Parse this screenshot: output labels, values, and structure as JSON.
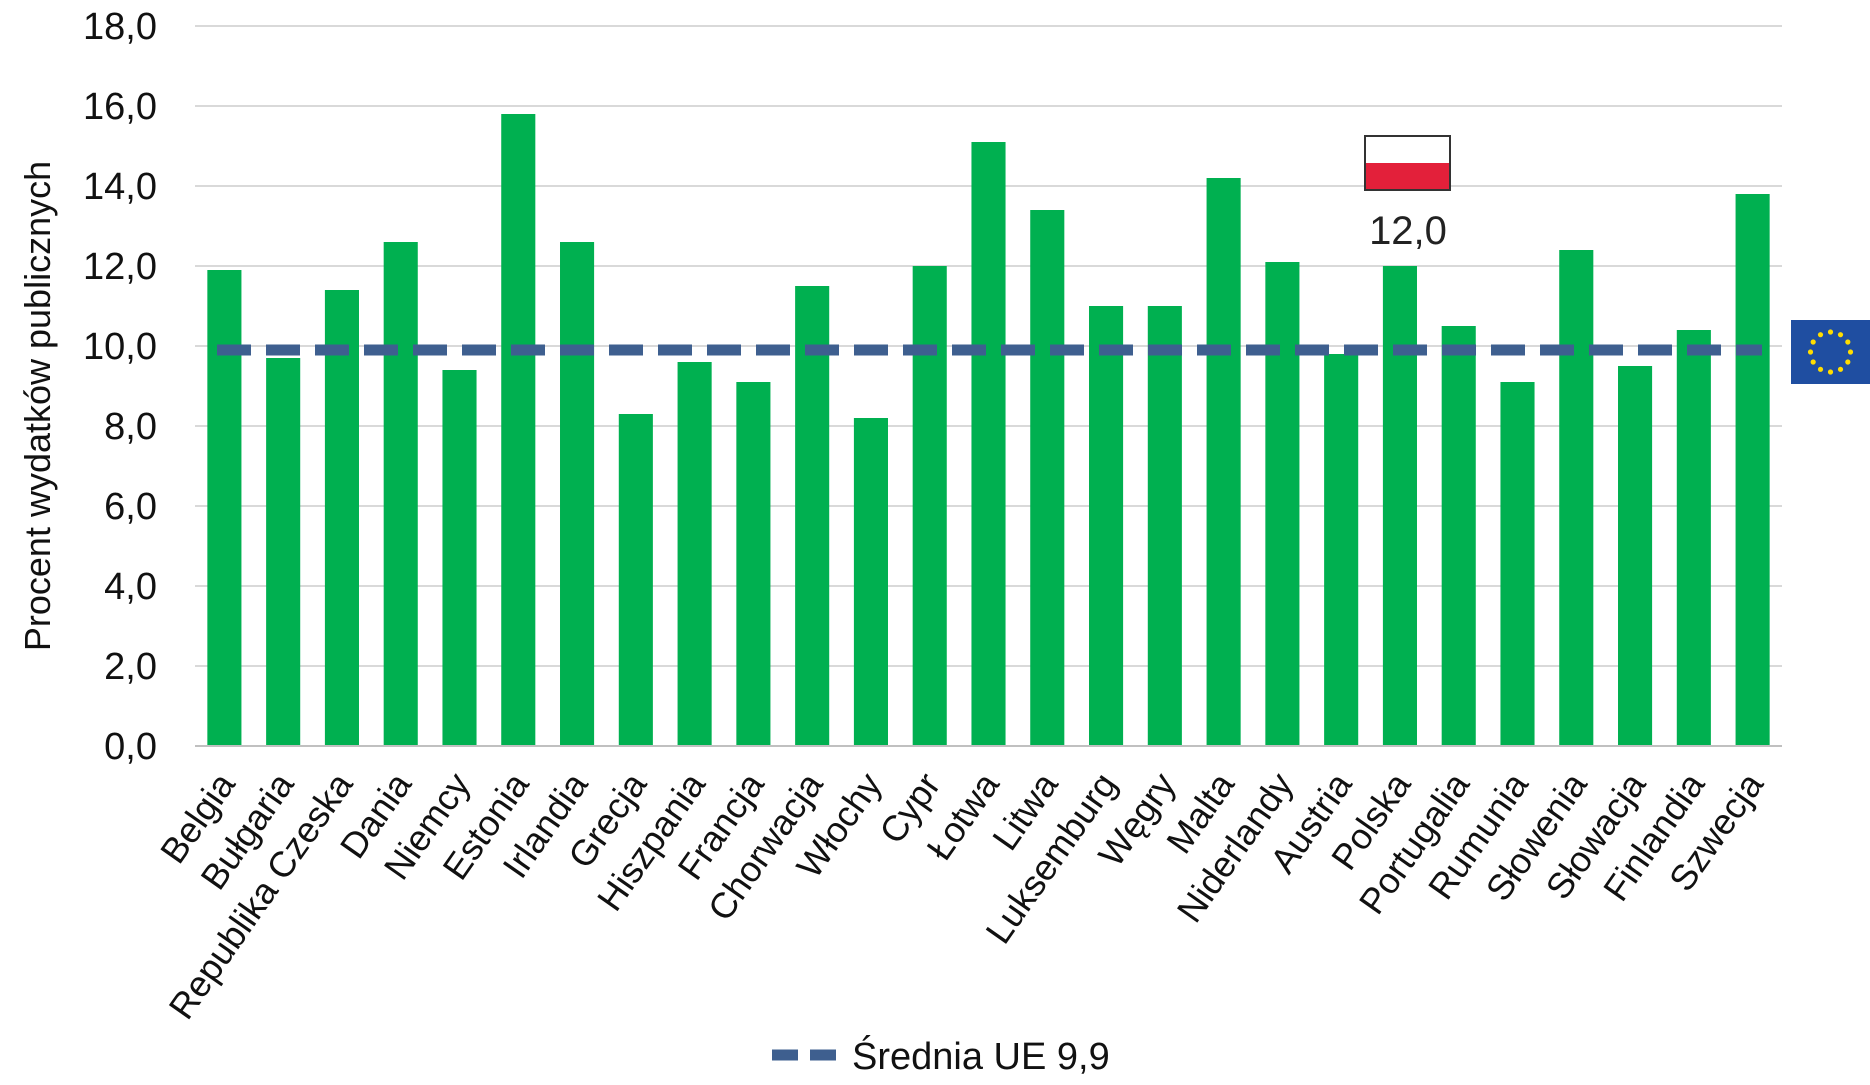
{
  "chart_data": {
    "type": "bar",
    "ylabel": "Procent wydatków publicznych",
    "xlabel": "",
    "ylim": [
      0,
      18
    ],
    "yticks": [
      "0,0",
      "2,0",
      "4,0",
      "6,0",
      "8,0",
      "10,0",
      "12,0",
      "14,0",
      "16,0",
      "18,0"
    ],
    "grid": true,
    "categories": [
      "Belgia",
      "Bułgaria",
      "Republika Czeska",
      "Dania",
      "Niemcy",
      "Estonia",
      "Irlandia",
      "Grecja",
      "Hiszpania",
      "Francja",
      "Chorwacja",
      "Włochy",
      "Cypr",
      "Łotwa",
      "Litwa",
      "Luksemburg",
      "Węgry",
      "Malta",
      "Niderlandy",
      "Austria",
      "Polska",
      "Portugalia",
      "Rumunia",
      "Słowenia",
      "Słowacja",
      "Finlandia",
      "Szwecja"
    ],
    "series": [
      {
        "values": [
          11.9,
          9.7,
          11.4,
          12.6,
          9.4,
          15.8,
          12.6,
          8.3,
          9.6,
          9.1,
          11.5,
          8.2,
          12.0,
          15.1,
          13.4,
          11.0,
          11.0,
          14.2,
          12.1,
          9.8,
          12.0,
          10.5,
          9.1,
          12.4,
          9.5,
          10.4,
          13.8
        ],
        "color": "#00b050"
      }
    ],
    "reference_line": {
      "label": "Średnia UE 9,9",
      "value": 9.9,
      "color": "#3e5f8f",
      "style": "dashed"
    },
    "legend_placement": "bottom",
    "annotations": [
      {
        "category": "Polska",
        "text": "12,0",
        "icon": "poland-flag-icon"
      },
      {
        "text": "",
        "icon": "eu-flag-icon",
        "placement": "right-of-average-line"
      }
    ]
  }
}
